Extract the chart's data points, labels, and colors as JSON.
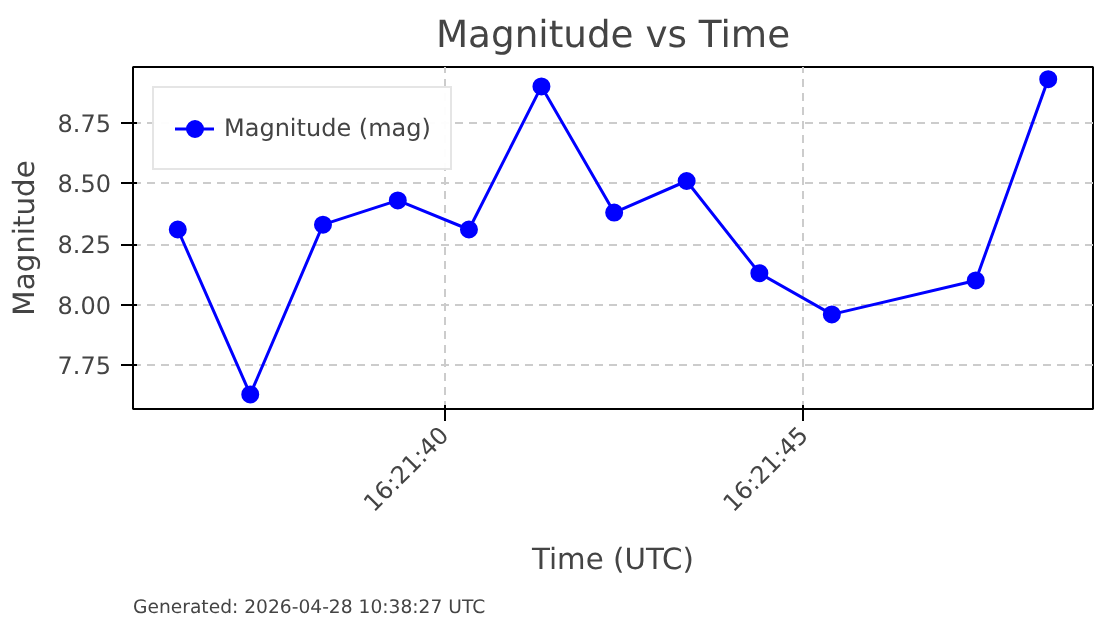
{
  "chart_data": {
    "type": "line",
    "title": "Magnitude vs Time",
    "xlabel": "Time (UTC)",
    "ylabel": "Magnitude",
    "x": [
      16.360081,
      16.360361,
      16.360642,
      16.360931,
      16.361206,
      16.361486,
      16.361767,
      16.362047,
      16.362328,
      16.362608,
      16.363164,
      16.363444
    ],
    "series": [
      {
        "name": "Magnitude (mag)",
        "color": "#0000ff",
        "values": [
          8.31,
          7.63,
          8.33,
          8.43,
          8.31,
          8.9,
          8.38,
          8.51,
          8.13,
          7.96,
          8.1,
          8.93
        ]
      }
    ],
    "xlim": [
      16.359908,
      16.363617
    ],
    "xticks": [
      {
        "value": 16.361111,
        "label": "16:21:40"
      },
      {
        "value": 16.3625,
        "label": "16:21:45"
      }
    ],
    "ylim": [
      7.57,
      8.98
    ],
    "yticks": [
      {
        "value": 7.75,
        "label": "7.75"
      },
      {
        "value": 8.0,
        "label": "8.00"
      },
      {
        "value": 8.25,
        "label": "8.25"
      },
      {
        "value": 8.5,
        "label": "8.50"
      },
      {
        "value": 8.75,
        "label": "8.75"
      }
    ],
    "grid": true,
    "legend": "top left",
    "marker": "circle",
    "line_style": "solid",
    "annotations": [
      "Generated: 2026-04-28 10:38:27 UTC"
    ]
  }
}
